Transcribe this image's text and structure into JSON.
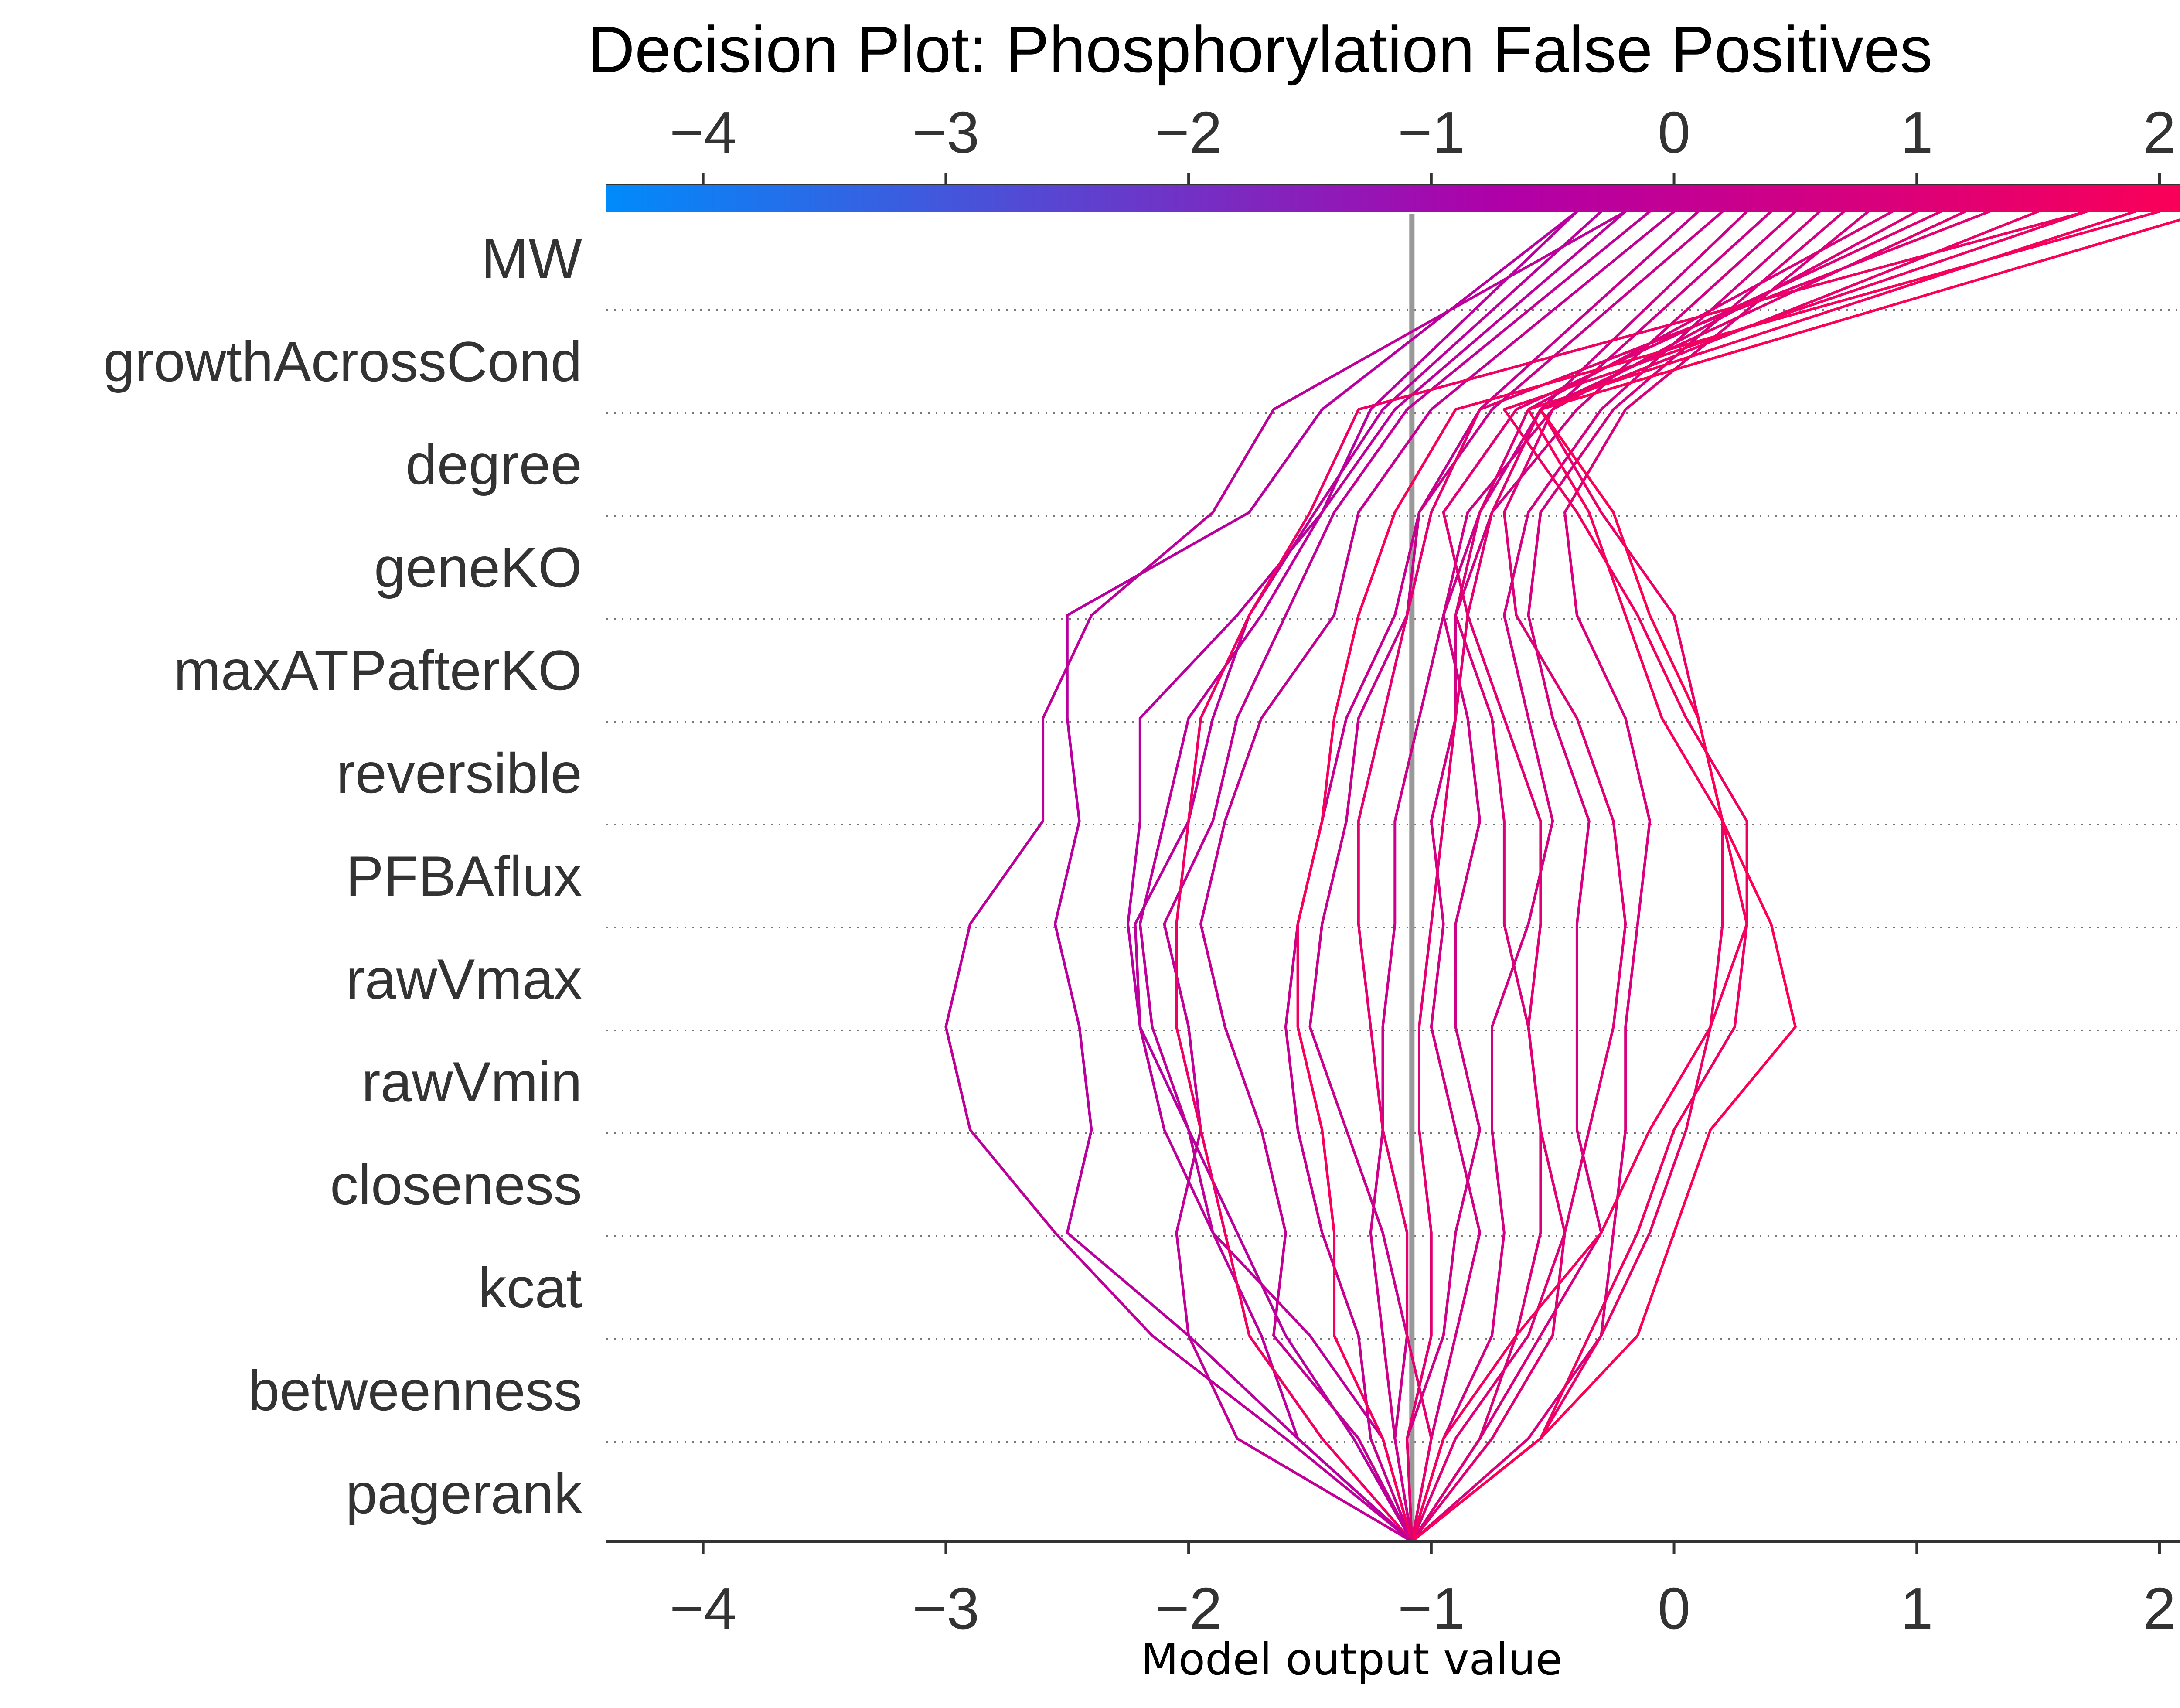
{
  "chart_data": {
    "type": "line",
    "title": "Decision Plot: Phosphorylation False Positives",
    "xlabel": "Model output value",
    "xlim": [
      -4.4,
      2.3
    ],
    "xticks": [
      -4,
      -3,
      -2,
      -1,
      0,
      1,
      2
    ],
    "xtick_labels": [
      "−4",
      "−3",
      "−2",
      "−1",
      "0",
      "1",
      "2"
    ],
    "base_value": -1.08,
    "features": [
      "MW",
      "growthAcrossCond",
      "degree",
      "geneKO",
      "maxATPafterKO",
      "reversible",
      "PFBAflux",
      "rawVmax",
      "rawVmin",
      "closeness",
      "kcat",
      "betweenness",
      "pagerank"
    ],
    "colors": {
      "low": "#008bfb",
      "mid": "#b000a8",
      "high": "#ff0052",
      "base_line": "#999999"
    },
    "series": [
      {
        "values": [
          -1.08,
          -1.32,
          -1.6,
          -1.8,
          -2.0,
          -2.2,
          -2.25,
          -2.2,
          -2.2,
          -1.8,
          -1.45,
          -1.25,
          -0.4
        ]
      },
      {
        "values": [
          -1.08,
          -1.55,
          -1.7,
          -1.9,
          -2.1,
          -2.2,
          -2.22,
          -2.0,
          -1.9,
          -1.75,
          -1.48,
          -1.2,
          -0.3
        ]
      },
      {
        "values": [
          -1.08,
          -1.2,
          -1.5,
          -1.9,
          -2.0,
          -2.15,
          -2.2,
          -2.1,
          -2.0,
          -1.7,
          -1.45,
          -1.15,
          -0.2
        ]
      },
      {
        "values": [
          -1.08,
          -1.8,
          -2.0,
          -2.05,
          -1.95,
          -2.0,
          -2.1,
          -1.9,
          -1.8,
          -1.6,
          -1.4,
          -1.1,
          -0.1
        ]
      },
      {
        "values": [
          -1.08,
          -1.3,
          -1.65,
          -1.6,
          -1.7,
          -1.85,
          -1.95,
          -1.85,
          -1.7,
          -1.4,
          -1.3,
          -1.0,
          0.0
        ]
      },
      {
        "values": [
          -1.08,
          -1.25,
          -1.3,
          -1.45,
          -1.55,
          -1.6,
          -1.55,
          -1.45,
          -1.35,
          -1.15,
          -1.05,
          -0.8,
          0.1
        ]
      },
      {
        "values": [
          -1.08,
          -1.15,
          -1.1,
          -1.2,
          -1.35,
          -1.5,
          -1.45,
          -1.35,
          -1.3,
          -1.1,
          -1.05,
          -0.75,
          0.2
        ]
      },
      {
        "values": [
          -1.08,
          -1.15,
          -1.2,
          -1.25,
          -1.2,
          -1.2,
          -1.15,
          -1.15,
          -1.05,
          -0.95,
          -0.8,
          -0.55,
          0.3
        ]
      },
      {
        "values": [
          -1.08,
          -1.1,
          -0.95,
          -0.9,
          -0.8,
          -0.9,
          -0.9,
          -0.8,
          -0.85,
          -0.95,
          -0.85,
          -0.5,
          0.4
        ]
      },
      {
        "values": [
          -1.08,
          -1.0,
          -0.9,
          -0.8,
          -0.9,
          -1.0,
          -0.95,
          -1.0,
          -0.9,
          -0.9,
          -0.75,
          -0.4,
          0.5
        ]
      },
      {
        "values": [
          -1.08,
          -0.95,
          -0.75,
          -0.7,
          -0.75,
          -0.75,
          -0.6,
          -0.5,
          -0.6,
          -0.7,
          -0.6,
          -0.3,
          0.6
        ]
      },
      {
        "values": [
          -1.08,
          -0.8,
          -0.55,
          -0.3,
          -0.4,
          -0.4,
          -0.4,
          -0.35,
          -0.5,
          -0.6,
          -0.55,
          -0.25,
          0.7
        ]
      },
      {
        "values": [
          -1.08,
          -0.6,
          -0.3,
          -0.25,
          -0.2,
          -0.2,
          -0.15,
          -0.1,
          -0.2,
          -0.4,
          -0.45,
          -0.2,
          0.8
        ]
      },
      {
        "values": [
          -1.08,
          -0.8,
          -0.65,
          -0.55,
          -0.55,
          -0.6,
          -0.7,
          -0.7,
          -0.75,
          -0.9,
          -0.8,
          -0.6,
          0.9
        ]
      },
      {
        "values": [
          -1.08,
          -0.9,
          -0.6,
          -0.45,
          -0.35,
          -0.25,
          -0.2,
          -0.25,
          -0.4,
          -0.65,
          -0.7,
          -0.5,
          1.0
        ]
      },
      {
        "values": [
          -1.08,
          -0.75,
          -0.5,
          -0.45,
          -0.55,
          -0.6,
          -0.55,
          -0.55,
          -0.7,
          -0.85,
          -0.95,
          -0.65,
          1.1
        ]
      },
      {
        "values": [
          -1.08,
          -1.0,
          -1.1,
          -1.1,
          -1.2,
          -1.25,
          -1.3,
          -1.3,
          -1.2,
          -1.1,
          -1.0,
          -0.8,
          1.3
        ]
      },
      {
        "values": [
          -1.08,
          -0.55,
          -0.3,
          -0.1,
          0.05,
          0.15,
          0.2,
          0.2,
          0.1,
          0.0,
          -0.3,
          -0.55,
          1.5
        ]
      },
      {
        "values": [
          -1.08,
          -0.55,
          -0.35,
          -0.15,
          0.0,
          0.25,
          0.3,
          0.3,
          0.05,
          -0.15,
          -0.4,
          -0.7,
          1.7
        ]
      },
      {
        "values": [
          -1.08,
          -0.95,
          -0.65,
          -0.3,
          -0.1,
          0.15,
          0.3,
          0.2,
          -0.05,
          -0.2,
          -0.35,
          -0.6,
          1.9
        ]
      },
      {
        "values": [
          -1.08,
          -0.55,
          -0.15,
          0.0,
          0.15,
          0.5,
          0.4,
          0.2,
          0.1,
          -0.1,
          -0.25,
          -0.55,
          2.2
        ]
      },
      {
        "values": [
          -1.08,
          -1.2,
          -1.4,
          -1.4,
          -1.45,
          -1.55,
          -1.55,
          -1.45,
          -1.4,
          -1.3,
          -1.15,
          -0.9,
          2.0
        ]
      },
      {
        "values": [
          -1.08,
          -1.45,
          -1.75,
          -1.85,
          -1.95,
          -2.05,
          -2.05,
          -2.0,
          -1.95,
          -1.75,
          -1.5,
          -1.3,
          1.7
        ]
      },
      {
        "values": [
          -1.08,
          -1.1,
          -1.0,
          -1.0,
          -1.05,
          -1.05,
          -1.0,
          -0.95,
          -0.9,
          -0.85,
          -0.75,
          -0.55,
          1.2
        ]
      },
      {
        "values": [
          -1.08,
          -1.55,
          -2.0,
          -2.5,
          -2.4,
          -2.45,
          -2.55,
          -2.45,
          -2.5,
          -2.5,
          -1.75,
          -1.45,
          -0.4
        ]
      },
      {
        "values": [
          -1.08,
          -1.6,
          -2.15,
          -2.55,
          -2.9,
          -3.0,
          -2.9,
          -2.6,
          -2.6,
          -2.4,
          -1.9,
          -1.65,
          -0.2
        ]
      }
    ]
  }
}
